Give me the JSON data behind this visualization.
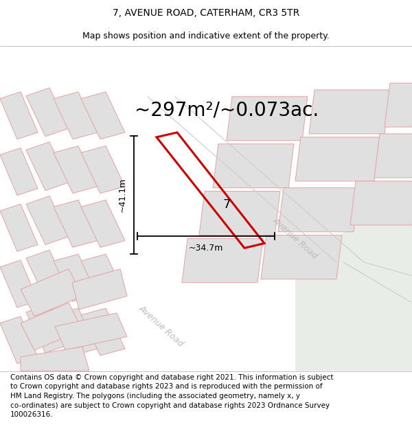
{
  "title": "7, AVENUE ROAD, CATERHAM, CR3 5TR",
  "subtitle": "Map shows position and indicative extent of the property.",
  "area_text": "~297m²/~0.073ac.",
  "label_7": "7",
  "dim_v": "~41.1m",
  "dim_h": "~34.7m",
  "road_label_upper": "Avenue Road",
  "road_label_lower": "Avenue Road",
  "disclaimer": "Contains OS data © Crown copyright and database right 2021. This information is subject\nto Crown copyright and database rights 2023 and is reproduced with the permission of\nHM Land Registry. The polygons (including the associated geometry, namely x, y\nco-ordinates) are subject to Crown copyright and database rights 2023 Ordnance Survey\n100026316.",
  "bg_color": "#ffffff",
  "map_bg": "#f7f7f7",
  "building_fill": "#e0e0e0",
  "building_edge": "#e8a0a0",
  "highlight_color": "#cc0000",
  "road_green": "#e8ede8",
  "road_line_color": "#cccccc",
  "dim_color": "#000000",
  "road_label_color": "#bbbbbb",
  "title_fontsize": 10,
  "subtitle_fontsize": 9,
  "area_fontsize": 20,
  "disclaimer_fontsize": 7.5
}
